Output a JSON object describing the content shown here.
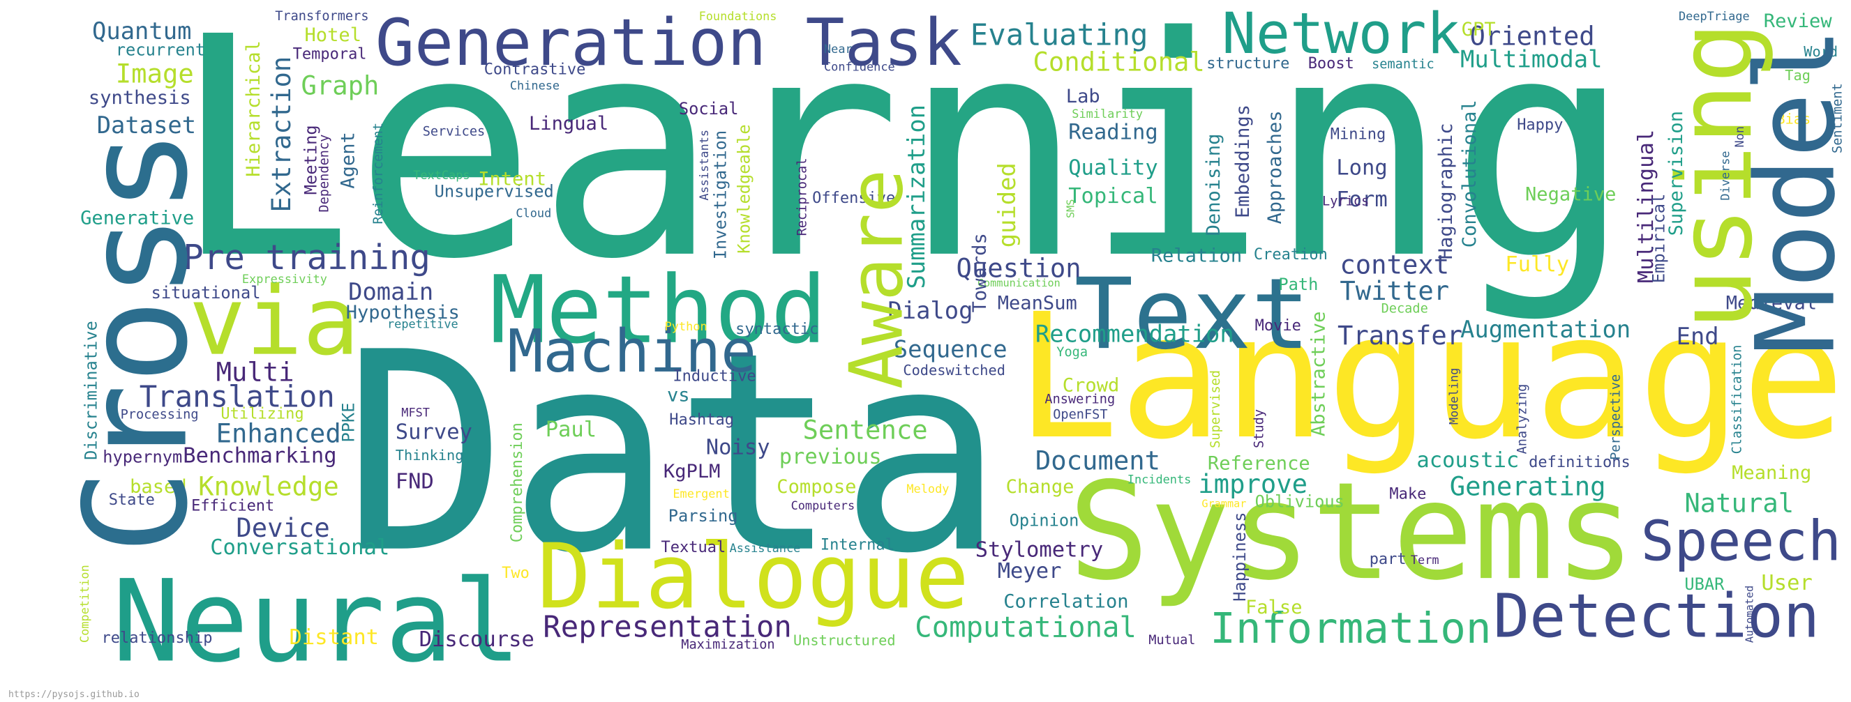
{
  "words": [
    "Learning",
    "Data",
    "Language",
    "Systems",
    "Neural",
    "Dialogue",
    "Method",
    "via",
    "Text",
    "Generation Task",
    "Network",
    "Machine",
    "Detection",
    "Speech",
    "Information",
    "Representation",
    "Computational",
    "Pre training",
    "Translation",
    "Enhanced",
    "Knowledge",
    "Device",
    "Conversational",
    "Quantum",
    "recurrent",
    "Image",
    "synthesis",
    "Dataset",
    "Generative",
    "situational",
    "Domain",
    "Hypothesis",
    "Multi",
    "Evaluating",
    "Oriented",
    "Multimodal",
    "Conditional",
    "Graph",
    "Hotel",
    "Temporal",
    "Transformers",
    "Foundations",
    "Contrastive",
    "Chinese",
    "Social",
    "Lingual",
    "Services",
    "Near",
    "Confidence",
    "Lab",
    "Similarity",
    "Reading",
    "Quality",
    "Topical",
    "Unsupervised",
    "Intent",
    "TextCaps",
    "Cloud",
    "Offensive",
    "structure",
    "Boost",
    "semantic",
    "GPT",
    "DeepTriage",
    "Review",
    "Word",
    "Tag",
    "Bias",
    "Happy",
    "Mining",
    "Long",
    "Form",
    "Lyrics",
    "Negative",
    "Fully",
    "context",
    "Twitter",
    "Creation",
    "Relation",
    "Question",
    "Communication",
    "MeanSum",
    "Dialog",
    "Path",
    "Movie",
    "Decade",
    "Recommendation",
    "Transfer",
    "Augmentation",
    "End",
    "Medieval",
    "Sequence",
    "Yoga",
    "Codeswitched",
    "Crowd",
    "Answering",
    "OpenFST",
    "Sentence",
    "previous",
    "Compose",
    "Computers",
    "Melody",
    "Change",
    "Opinion",
    "Stylometry",
    "Meyer",
    "Correlation",
    "Document",
    "improve",
    "Reference",
    "Incidents",
    "Grammar",
    "Oblivious",
    "Make",
    "acoustic",
    "definitions",
    "Generating",
    "Natural",
    "Meaning",
    "User",
    "UBAR",
    "False",
    "part",
    "Term",
    "Mutual",
    "Unstructured",
    "Maximization",
    "Discourse",
    "Distant",
    "relationship",
    "Textual",
    "Assistance",
    "Internal",
    "Two",
    "Parsing",
    "Emergent",
    "KgPLM",
    "Noisy",
    "Hashtag",
    "vs",
    "Inductive",
    "syntactic",
    "Python",
    "Paul",
    "Survey",
    "Thinking",
    "FND",
    "MFST",
    "Benchmarking",
    "hypernym",
    "Processing",
    "Utilizing",
    "based",
    "State",
    "Efficient",
    "repetitive",
    "Expressivity",
    "Cross",
    "Model",
    "using",
    "Aware",
    "Extraction",
    "Hierarchical",
    "Meeting",
    "Dependency",
    "Agent",
    "Reinforcement",
    "Discriminative",
    "Competition",
    "PPKE",
    "Comprehension",
    "Assistants",
    "Investigation",
    "Knowledgeable",
    "Reciprocal",
    "Summarization",
    "guided",
    "Towards",
    "Denoising",
    "Embeddings",
    "Approaches",
    "Abstractive",
    "Supervised",
    "Study",
    "Hagiographic",
    "Convolutional",
    "Multilingual",
    "Supervision",
    "Empirical",
    "Diverse",
    "Non",
    "Sentiment",
    "Modeling",
    "Analyzing",
    "Perspective",
    "Classification",
    "Automated",
    "SMS",
    "Happiness"
  ],
  "footer": "https://pysojs.github.io"
}
